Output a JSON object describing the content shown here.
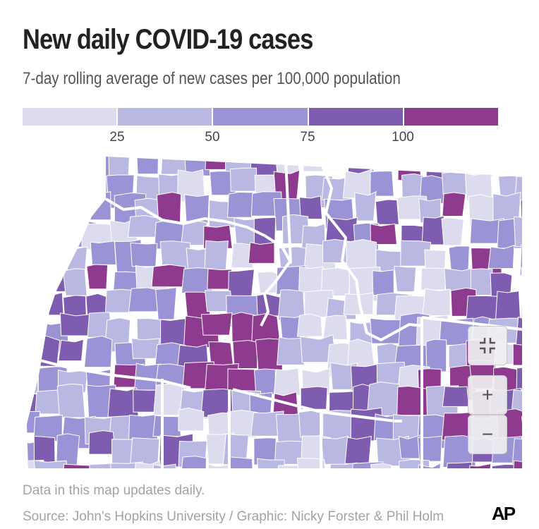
{
  "title": "New daily COVID-19 cases",
  "subtitle": "7-day rolling average of new cases per 100,000 population",
  "legend": {
    "colors": [
      "#dcdcee",
      "#b9b8e3",
      "#9a93d6",
      "#7e5cb0",
      "#8e3a8e"
    ],
    "ticks": [
      "25",
      "50",
      "75",
      "100"
    ]
  },
  "map": {
    "region": "Pacific Northwest / Northern Rockies counties",
    "background_color": "#ffffff",
    "border_color": "#ffffff"
  },
  "controls": {
    "fullscreen_icon": "compress-icon",
    "zoom_in_label": "+",
    "zoom_out_label": "−"
  },
  "footer": {
    "note": "Data in this map updates daily.",
    "source": "Source: John's Hopkins University / Graphic: Nicky Forster & Phil Holm",
    "logo": "AP"
  }
}
